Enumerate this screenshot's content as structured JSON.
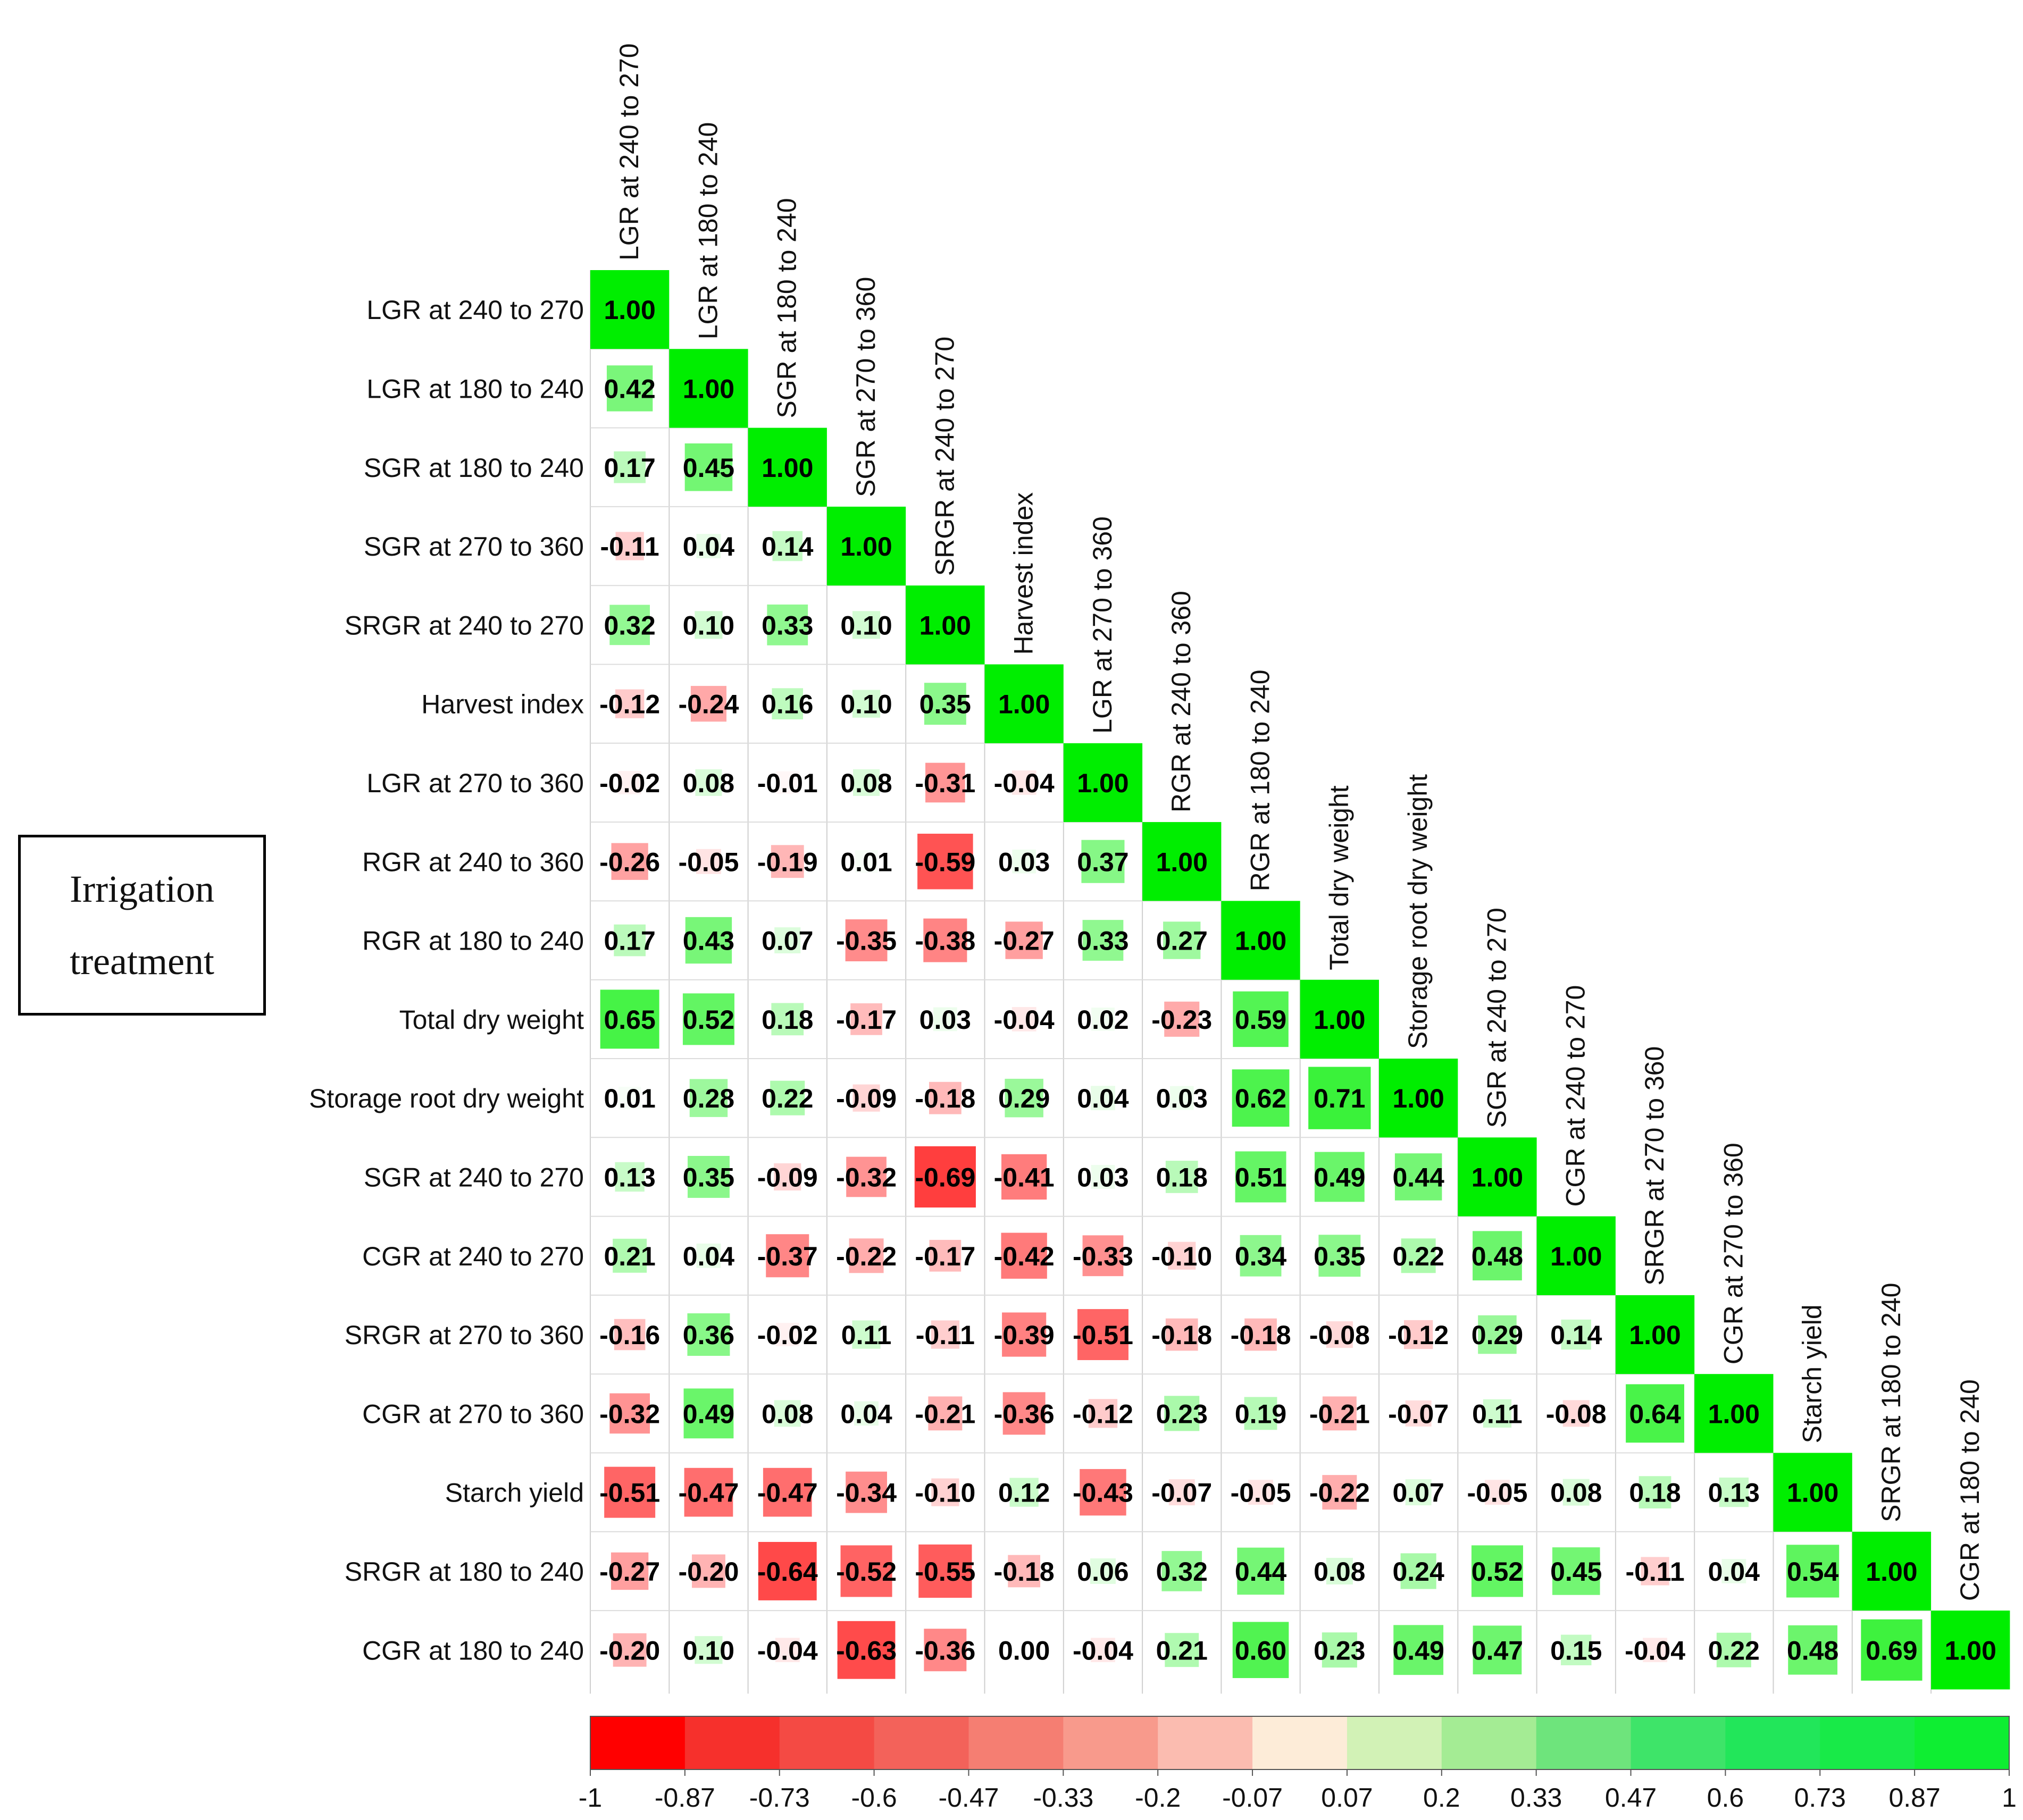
{
  "chart_data": {
    "type": "heatmap",
    "subtype": "lower-triangle correlation matrix",
    "variables": [
      "LGR at 240 to 270",
      "LGR at 180 to 240",
      "SGR at 180 to 240",
      "SGR at 270 to 360",
      "SRGR at 240 to 270",
      "Harvest index",
      "LGR at 270 to 360",
      "RGR at 240 to 360",
      "RGR at 180 to 240",
      "Total dry weight",
      "Storage root dry weight",
      "SGR at 240 to 270",
      "CGR at 240 to 270",
      "SRGR at 270 to 360",
      "CGR at 270 to 360",
      "Starch yield",
      "SRGR at 180 to 240",
      "CGR at 180 to 240"
    ],
    "matrix": [
      [
        1.0
      ],
      [
        0.42,
        1.0
      ],
      [
        0.17,
        0.45,
        1.0
      ],
      [
        -0.11,
        0.04,
        0.14,
        1.0
      ],
      [
        0.32,
        0.1,
        0.33,
        0.1,
        1.0
      ],
      [
        -0.12,
        -0.24,
        0.16,
        0.1,
        0.35,
        1.0
      ],
      [
        -0.02,
        0.08,
        -0.01,
        0.08,
        -0.31,
        -0.04,
        1.0
      ],
      [
        -0.26,
        -0.05,
        -0.19,
        0.01,
        -0.59,
        0.03,
        0.37,
        1.0
      ],
      [
        0.17,
        0.43,
        0.07,
        -0.35,
        -0.38,
        -0.27,
        0.33,
        0.27,
        1.0
      ],
      [
        0.65,
        0.52,
        0.18,
        -0.17,
        0.03,
        -0.04,
        0.02,
        -0.23,
        0.59,
        1.0
      ],
      [
        0.01,
        0.28,
        0.22,
        -0.09,
        -0.18,
        0.29,
        0.04,
        0.03,
        0.62,
        0.71,
        1.0
      ],
      [
        0.13,
        0.35,
        -0.09,
        -0.32,
        -0.69,
        -0.41,
        0.03,
        0.18,
        0.51,
        0.49,
        0.44,
        1.0
      ],
      [
        0.21,
        0.04,
        -0.37,
        -0.22,
        -0.17,
        -0.42,
        -0.33,
        -0.1,
        0.34,
        0.35,
        0.22,
        0.48,
        1.0
      ],
      [
        -0.16,
        0.36,
        -0.02,
        0.11,
        -0.11,
        -0.39,
        -0.51,
        -0.18,
        -0.18,
        -0.08,
        -0.12,
        0.29,
        0.14,
        1.0
      ],
      [
        -0.32,
        0.49,
        0.08,
        0.04,
        -0.21,
        -0.36,
        -0.12,
        0.23,
        0.19,
        -0.21,
        -0.07,
        0.11,
        -0.08,
        0.64,
        1.0
      ],
      [
        -0.51,
        -0.47,
        -0.47,
        -0.34,
        -0.1,
        0.12,
        -0.43,
        -0.07,
        -0.05,
        -0.22,
        0.07,
        -0.05,
        0.08,
        0.18,
        0.13,
        1.0
      ],
      [
        -0.27,
        -0.2,
        -0.64,
        -0.52,
        -0.55,
        -0.18,
        0.06,
        0.32,
        0.44,
        0.08,
        0.24,
        0.52,
        0.45,
        -0.11,
        0.04,
        0.54,
        1.0
      ],
      [
        -0.2,
        0.1,
        -0.04,
        -0.63,
        -0.36,
        0.0,
        -0.04,
        0.21,
        0.6,
        0.23,
        0.49,
        0.47,
        0.15,
        -0.04,
        0.22,
        0.48,
        0.69,
        1.0
      ]
    ],
    "value_range": [
      -1,
      1
    ],
    "colorbar": {
      "ticks": [
        "-1",
        "-0.87",
        "-0.73",
        "-0.6",
        "-0.47",
        "-0.33",
        "-0.2",
        "-0.07",
        "0.07",
        "0.2",
        "0.33",
        "0.47",
        "0.6",
        "0.73",
        "0.87",
        "1"
      ],
      "colors": [
        "#ff0000",
        "#f6302c",
        "#f44a44",
        "#f3625a",
        "#f57e72",
        "#f89a8c",
        "#fbbcb0",
        "#fdecd8",
        "#d2f2b6",
        "#a4ec94",
        "#6ee47c",
        "#3ee469",
        "#22e65a",
        "#18ea48",
        "#0eee32"
      ]
    },
    "color_scale": {
      "negative": "#ff0000",
      "neutral": "#ffffff",
      "positive": "#00ee00"
    },
    "legend_position": "bottom"
  },
  "side_label": {
    "line1": "Irrigation",
    "line2": "treatment"
  }
}
